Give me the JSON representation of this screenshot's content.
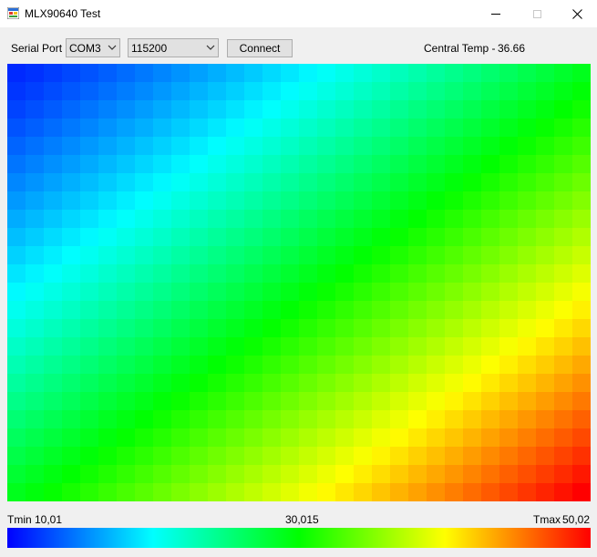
{
  "window": {
    "title": "MLX90640 Test",
    "icons": {
      "app": "app-window-icon",
      "minimize": "minimize-icon",
      "maximize": "maximize-icon",
      "close": "close-icon"
    }
  },
  "toolbar": {
    "serial_port_label": "Serial Port",
    "port_value": "COM3",
    "baud_value": "115200",
    "connect_label": "Connect",
    "central_temp_label": "Central Temp -",
    "central_temp_value": "36.66"
  },
  "heatmap": {
    "cols": 32,
    "rows": 24,
    "color_scale": [
      "#0000ff",
      "#00ffff",
      "#00ff00",
      "#ffff00",
      "#ff0000"
    ]
  },
  "scale": {
    "tmin_label": "Tmin",
    "tmin_value": "10,01",
    "mid_value": "30,015",
    "tmax_label": "Tmax",
    "tmax_value": "50,02"
  }
}
